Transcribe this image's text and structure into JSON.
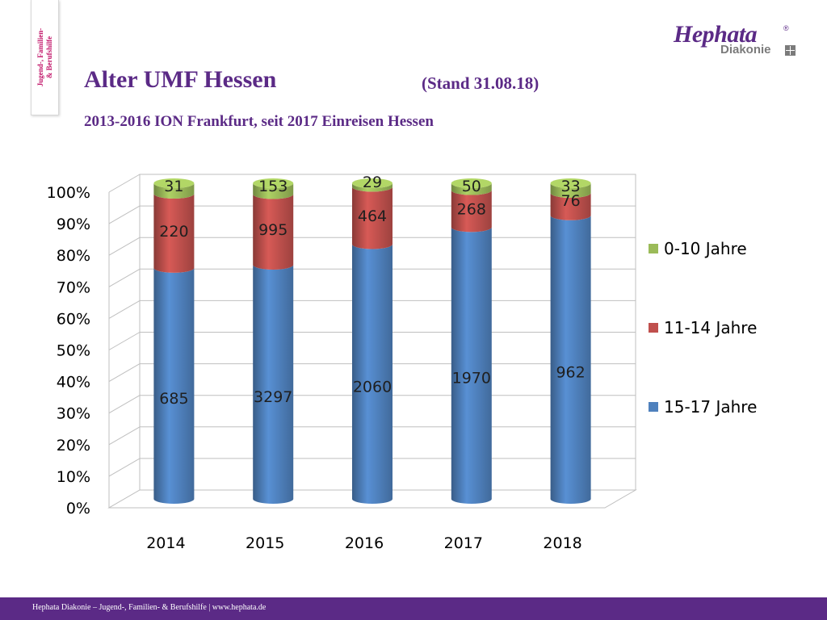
{
  "sidebar_tab": {
    "text": "Jugend-, Familien-\n& Berufshilfe"
  },
  "logo": {
    "name": "Hephata",
    "registered": "®",
    "sub": "Diakonie"
  },
  "header": {
    "title": "Alter UMF Hessen",
    "stand": "(Stand 31.08.18)",
    "subtitle": "2013-2016 ION Frankfurt, seit 2017 Einreisen Hessen"
  },
  "footer": {
    "text": "Hephata Diakonie – Jugend-, Familien- & Berufshilfe  |  www.hephata.de"
  },
  "colors": {
    "brand": "#5b2a86",
    "accent": "#c2186b",
    "series_15_17": "#4f81bd",
    "series_11_14": "#c0504d",
    "series_0_10": "#9bbb59"
  },
  "chart_data": {
    "type": "bar",
    "stacked": "percent",
    "three_d": true,
    "categories": [
      "2014",
      "2015",
      "2016",
      "2017",
      "2018"
    ],
    "series": [
      {
        "name": "15-17 Jahre",
        "color": "#4f81bd",
        "values": [
          685,
          3297,
          2060,
          1970,
          962
        ],
        "labels": [
          "685",
          "3297",
          "2060",
          "1970",
          "962"
        ]
      },
      {
        "name": "11-14 Jahre",
        "color": "#c0504d",
        "values": [
          220,
          995,
          464,
          268,
          76
        ],
        "labels": [
          "220",
          "995",
          "464",
          "268",
          "76"
        ]
      },
      {
        "name": "0-10 Jahre",
        "color": "#9bbb59",
        "values": [
          31,
          153,
          29,
          50,
          33
        ],
        "labels": [
          "31",
          "153",
          "29",
          "50",
          "33"
        ]
      }
    ],
    "y_ticks": [
      "0%",
      "10%",
      "20%",
      "30%",
      "40%",
      "50%",
      "60%",
      "70%",
      "80%",
      "90%",
      "100%"
    ],
    "ylim": [
      0,
      100
    ],
    "grid": true,
    "legend_position": "right",
    "legend_order": [
      "0-10 Jahre",
      "11-14 Jahre",
      "15-17 Jahre"
    ]
  }
}
